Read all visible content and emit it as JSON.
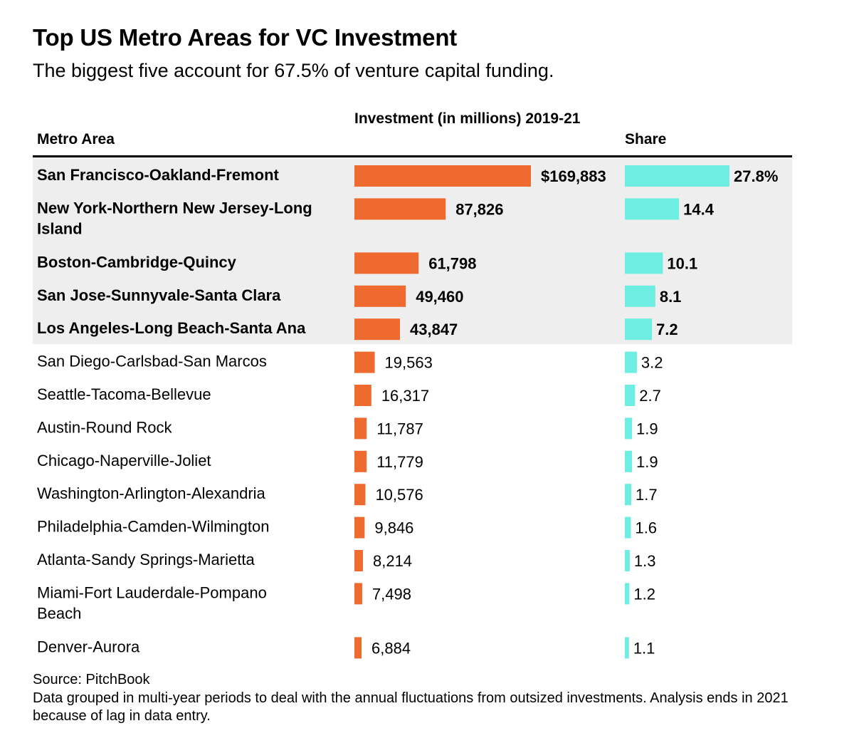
{
  "colors": {
    "investment_bar": "#ee6a2e",
    "share_bar": "#6eeee2",
    "highlight_bg": "#eeeeee",
    "rule": "#000000"
  },
  "chart_data": {
    "type": "table",
    "title": "Top US Metro Areas for VC Investment",
    "subtitle": "The biggest five account for 67.5% of venture capital funding.",
    "columns": [
      "Metro Area",
      "Investment (in millions) 2019-21",
      "Share"
    ],
    "highlighted_rows": 5,
    "rows": [
      {
        "metro": "San Francisco-Oakland-Fremont",
        "investment": 169883,
        "investment_label": "$169,883",
        "share": 27.8,
        "share_label": "27.8%"
      },
      {
        "metro": "New York-Northern New Jersey-Long Island",
        "investment": 87826,
        "investment_label": "87,826",
        "share": 14.4,
        "share_label": "14.4"
      },
      {
        "metro": "Boston-Cambridge-Quincy",
        "investment": 61798,
        "investment_label": "61,798",
        "share": 10.1,
        "share_label": "10.1"
      },
      {
        "metro": "San Jose-Sunnyvale-Santa Clara",
        "investment": 49460,
        "investment_label": "49,460",
        "share": 8.1,
        "share_label": "8.1"
      },
      {
        "metro": "Los Angeles-Long Beach-Santa Ana",
        "investment": 43847,
        "investment_label": "43,847",
        "share": 7.2,
        "share_label": "7.2"
      },
      {
        "metro": "San Diego-Carlsbad-San Marcos",
        "investment": 19563,
        "investment_label": "19,563",
        "share": 3.2,
        "share_label": "3.2"
      },
      {
        "metro": "Seattle-Tacoma-Bellevue",
        "investment": 16317,
        "investment_label": "16,317",
        "share": 2.7,
        "share_label": "2.7"
      },
      {
        "metro": "Austin-Round Rock",
        "investment": 11787,
        "investment_label": "11,787",
        "share": 1.9,
        "share_label": "1.9"
      },
      {
        "metro": "Chicago-Naperville-Joliet",
        "investment": 11779,
        "investment_label": "11,779",
        "share": 1.9,
        "share_label": "1.9"
      },
      {
        "metro": "Washington-Arlington-Alexandria",
        "investment": 10576,
        "investment_label": "10,576",
        "share": 1.7,
        "share_label": "1.7"
      },
      {
        "metro": "Philadelphia-Camden-Wilmington",
        "investment": 9846,
        "investment_label": "9,846",
        "share": 1.6,
        "share_label": "1.6"
      },
      {
        "metro": "Atlanta-Sandy Springs-Marietta",
        "investment": 8214,
        "investment_label": "8,214",
        "share": 1.3,
        "share_label": "1.3"
      },
      {
        "metro": "Miami-Fort Lauderdale-Pompano Beach",
        "investment": 7498,
        "investment_label": "7,498",
        "share": 1.2,
        "share_label": "1.2"
      },
      {
        "metro": "Denver-Aurora",
        "investment": 6884,
        "investment_label": "6,884",
        "share": 1.1,
        "share_label": "1.1"
      }
    ]
  },
  "footer": {
    "source": "Source: PitchBook",
    "note": "Data grouped in multi-year periods to deal with the annual fluctuations from outsized investments. Analysis ends in 2021 because of lag in data entry."
  }
}
